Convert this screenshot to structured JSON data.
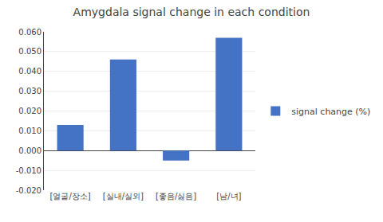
{
  "chart_data": {
    "type": "bar",
    "title": "Amygdala signal change in each condition",
    "categories": [
      "[얼굴/장소]",
      "[실내/실외]",
      "[좋음/싫음]",
      "[남/녀]"
    ],
    "series": [
      {
        "name": "signal change (%)",
        "color": "#4472C4",
        "values": [
          0.013,
          0.046,
          -0.005,
          0.057
        ]
      }
    ],
    "ylim": [
      -0.02,
      0.06
    ],
    "yticks": [
      {
        "value": -0.02,
        "label": "-0.020"
      },
      {
        "value": -0.01,
        "label": "-0.010"
      },
      {
        "value": 0.0,
        "label": "0.000"
      },
      {
        "value": 0.01,
        "label": "0.010"
      },
      {
        "value": 0.02,
        "label": "0.020"
      },
      {
        "value": 0.03,
        "label": "0.030"
      },
      {
        "value": 0.04,
        "label": "0.040"
      },
      {
        "value": 0.05,
        "label": "0.050"
      },
      {
        "value": 0.06,
        "label": "0.060"
      }
    ],
    "grid": true,
    "legend": "right"
  }
}
